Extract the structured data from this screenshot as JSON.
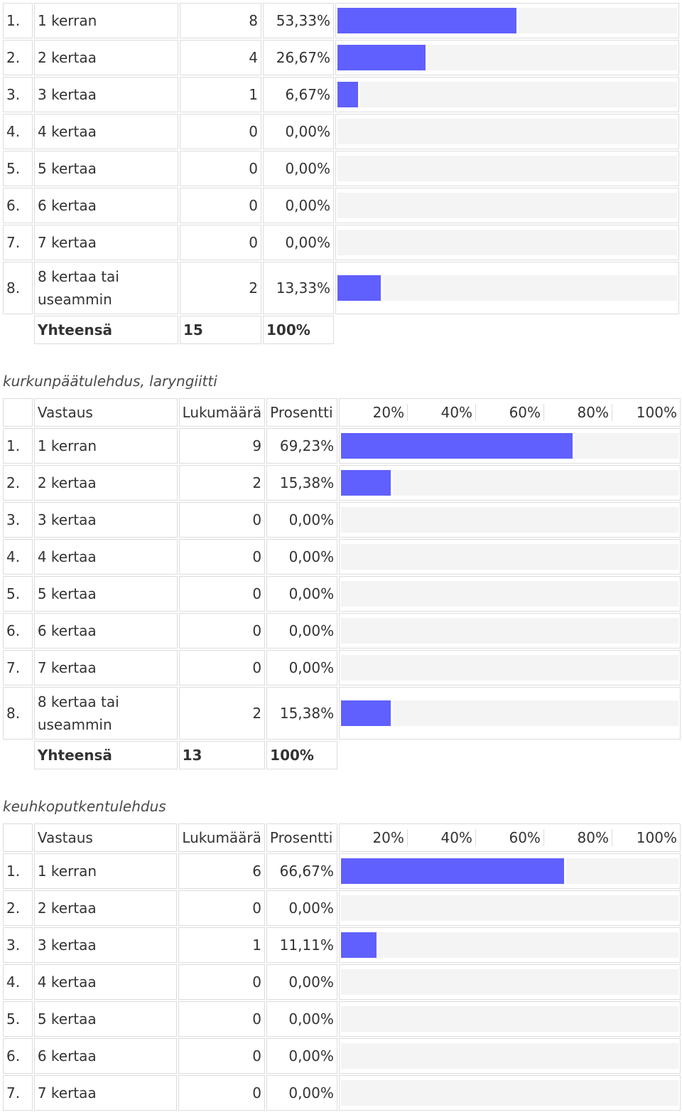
{
  "sections": [
    {
      "caption": "",
      "show_header": false,
      "rows": [
        {
          "num": "1.",
          "answer": "1 kerran",
          "count": "8",
          "percent": "53,33%",
          "value": 53.33
        },
        {
          "num": "2.",
          "answer": "2 kertaa",
          "count": "4",
          "percent": "26,67%",
          "value": 26.67
        },
        {
          "num": "3.",
          "answer": "3 kertaa",
          "count": "1",
          "percent": "6,67%",
          "value": 6.67
        },
        {
          "num": "4.",
          "answer": "4 kertaa",
          "count": "0",
          "percent": "0,00%",
          "value": 0
        },
        {
          "num": "5.",
          "answer": "5 kertaa",
          "count": "0",
          "percent": "0,00%",
          "value": 0
        },
        {
          "num": "6.",
          "answer": "6 kertaa",
          "count": "0",
          "percent": "0,00%",
          "value": 0
        },
        {
          "num": "7.",
          "answer": "7 kertaa",
          "count": "0",
          "percent": "0,00%",
          "value": 0
        },
        {
          "num": "8.",
          "answer": "8 kertaa tai useammin",
          "count": "2",
          "percent": "13,33%",
          "value": 13.33
        }
      ],
      "total": {
        "label": "Yhteensä",
        "count": "15",
        "percent": "100%"
      }
    },
    {
      "caption": "kurkunpäätulehdus, laryngiitti",
      "show_header": true,
      "rows": [
        {
          "num": "1.",
          "answer": "1 kerran",
          "count": "9",
          "percent": "69,23%",
          "value": 69.23
        },
        {
          "num": "2.",
          "answer": "2 kertaa",
          "count": "2",
          "percent": "15,38%",
          "value": 15.38
        },
        {
          "num": "3.",
          "answer": "3 kertaa",
          "count": "0",
          "percent": "0,00%",
          "value": 0
        },
        {
          "num": "4.",
          "answer": "4 kertaa",
          "count": "0",
          "percent": "0,00%",
          "value": 0
        },
        {
          "num": "5.",
          "answer": "5 kertaa",
          "count": "0",
          "percent": "0,00%",
          "value": 0
        },
        {
          "num": "6.",
          "answer": "6 kertaa",
          "count": "0",
          "percent": "0,00%",
          "value": 0
        },
        {
          "num": "7.",
          "answer": "7 kertaa",
          "count": "0",
          "percent": "0,00%",
          "value": 0
        },
        {
          "num": "8.",
          "answer": "8 kertaa tai useammin",
          "count": "2",
          "percent": "15,38%",
          "value": 15.38
        }
      ],
      "total": {
        "label": "Yhteensä",
        "count": "13",
        "percent": "100%"
      }
    },
    {
      "caption": "keuhkoputkentulehdus",
      "show_header": true,
      "rows": [
        {
          "num": "1.",
          "answer": "1 kerran",
          "count": "6",
          "percent": "66,67%",
          "value": 66.67
        },
        {
          "num": "2.",
          "answer": "2 kertaa",
          "count": "0",
          "percent": "0,00%",
          "value": 0
        },
        {
          "num": "3.",
          "answer": "3 kertaa",
          "count": "1",
          "percent": "11,11%",
          "value": 11.11
        },
        {
          "num": "4.",
          "answer": "4 kertaa",
          "count": "0",
          "percent": "0,00%",
          "value": 0
        },
        {
          "num": "5.",
          "answer": "5 kertaa",
          "count": "0",
          "percent": "0,00%",
          "value": 0
        },
        {
          "num": "6.",
          "answer": "6 kertaa",
          "count": "0",
          "percent": "0,00%",
          "value": 0
        },
        {
          "num": "7.",
          "answer": "7 kertaa",
          "count": "0",
          "percent": "0,00%",
          "value": 0
        }
      ],
      "total": null
    }
  ],
  "header": {
    "answer": "Vastaus",
    "count": "Lukumäärä",
    "percent": "Prosentti",
    "scale": [
      "20%",
      "40%",
      "60%",
      "80%",
      "100%"
    ]
  },
  "colors": {
    "bar": "#6060ff",
    "track": "#f4f4f4",
    "border": "#dcdcdc"
  }
}
